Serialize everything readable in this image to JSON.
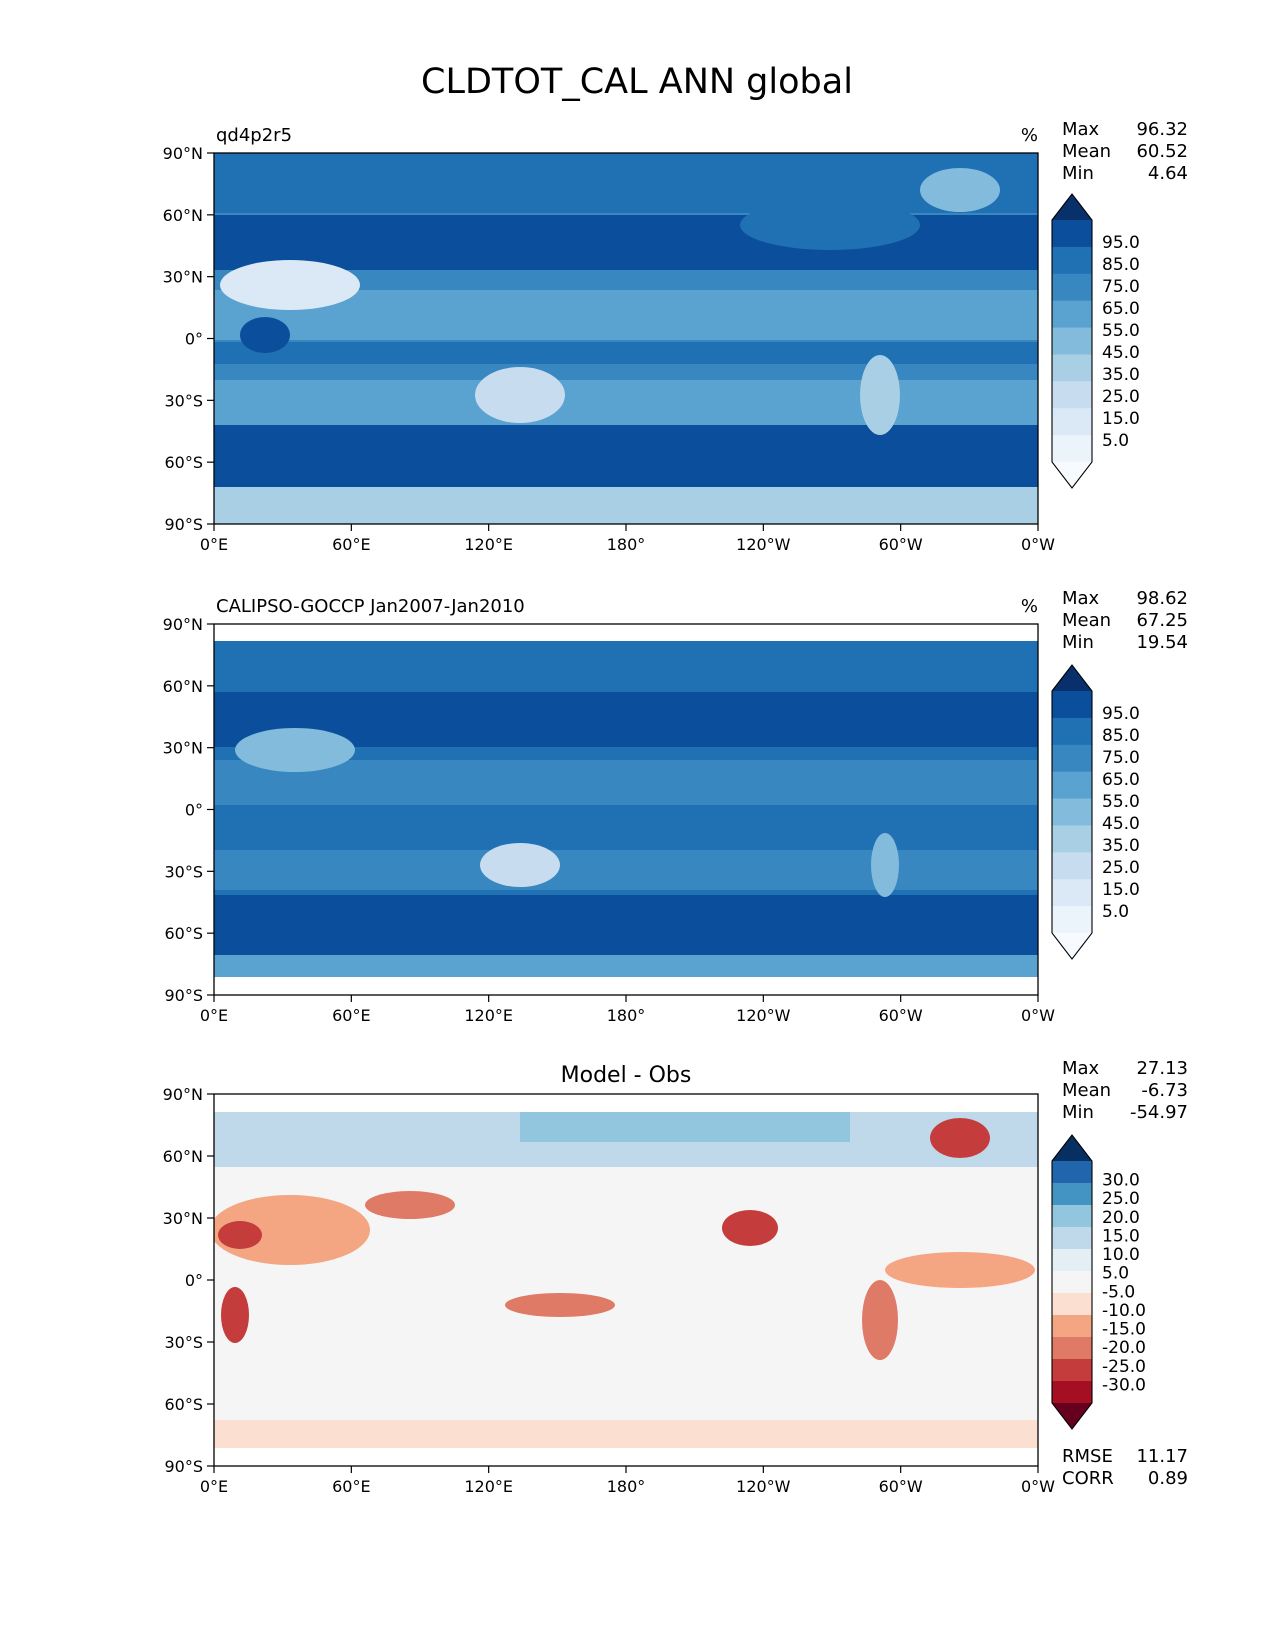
{
  "figure": {
    "title": "CLDTOT_CAL ANN global"
  },
  "chart_data": [
    {
      "type": "heatmap",
      "title": "qd4p2r5",
      "units": "%",
      "stats": {
        "max_label": "Max",
        "max": "96.32",
        "mean_label": "Mean",
        "mean": "60.52",
        "min_label": "Min",
        "min": "4.64"
      },
      "xticks": [
        "0°E",
        "60°E",
        "120°E",
        "180°",
        "120°W",
        "60°W",
        "0°W"
      ],
      "yticks": [
        "90°N",
        "60°N",
        "30°N",
        "0°",
        "30°S",
        "60°S",
        "90°S"
      ],
      "xlim": [
        0,
        360
      ],
      "ylim": [
        -90,
        90
      ],
      "colorbar": {
        "levels": [
          "95.0",
          "85.0",
          "75.0",
          "65.0",
          "55.0",
          "45.0",
          "35.0",
          "25.0",
          "15.0",
          "5.0"
        ],
        "colors": [
          "#08306b",
          "#0b4f9c",
          "#2070b4",
          "#3887c0",
          "#5aa2cf",
          "#82bbdb",
          "#a9cfe5",
          "#c8dcef",
          "#dbe9f6",
          "#ebf3fb",
          "#f7fbff"
        ]
      }
    },
    {
      "type": "heatmap",
      "title": "CALIPSO-GOCCP Jan2007-Jan2010",
      "units": "%",
      "stats": {
        "max_label": "Max",
        "max": "98.62",
        "mean_label": "Mean",
        "mean": "67.25",
        "min_label": "Min",
        "min": "19.54"
      },
      "xticks": [
        "0°E",
        "60°E",
        "120°E",
        "180°",
        "120°W",
        "60°W",
        "0°W"
      ],
      "yticks": [
        "90°N",
        "60°N",
        "30°N",
        "0°",
        "30°S",
        "60°S",
        "90°S"
      ],
      "xlim": [
        0,
        360
      ],
      "ylim": [
        -90,
        90
      ],
      "colorbar": {
        "levels": [
          "95.0",
          "85.0",
          "75.0",
          "65.0",
          "55.0",
          "45.0",
          "35.0",
          "25.0",
          "15.0",
          "5.0"
        ],
        "colors": [
          "#08306b",
          "#0b4f9c",
          "#2070b4",
          "#3887c0",
          "#5aa2cf",
          "#82bbdb",
          "#a9cfe5",
          "#c8dcef",
          "#dbe9f6",
          "#ebf3fb",
          "#f7fbff"
        ]
      }
    },
    {
      "type": "heatmap",
      "title": "Model - Obs",
      "units": "",
      "stats": {
        "max_label": "Max",
        "max": "27.13",
        "mean_label": "Mean",
        "mean": "-6.73",
        "min_label": "Min",
        "min": "-54.97"
      },
      "metrics": {
        "rmse_label": "RMSE",
        "rmse": "11.17",
        "corr_label": "CORR",
        "corr": "0.89"
      },
      "xticks": [
        "0°E",
        "60°E",
        "120°E",
        "180°",
        "120°W",
        "60°W",
        "0°W"
      ],
      "yticks": [
        "90°N",
        "60°N",
        "30°N",
        "0°",
        "30°S",
        "60°S",
        "90°S"
      ],
      "xlim": [
        0,
        360
      ],
      "ylim": [
        -90,
        90
      ],
      "colorbar": {
        "levels": [
          "30.0",
          "25.0",
          "20.0",
          "15.0",
          "10.0",
          "5.0",
          "-5.0",
          "-10.0",
          "-15.0",
          "-20.0",
          "-25.0",
          "-30.0"
        ],
        "colors": [
          "#053061",
          "#2166ac",
          "#4393c3",
          "#92c5de",
          "#c0d9ea",
          "#e3eef5",
          "#f5f5f5",
          "#fbe0d2",
          "#f4a582",
          "#de7a66",
          "#c43c3c",
          "#a50f23",
          "#67001f"
        ]
      }
    }
  ]
}
